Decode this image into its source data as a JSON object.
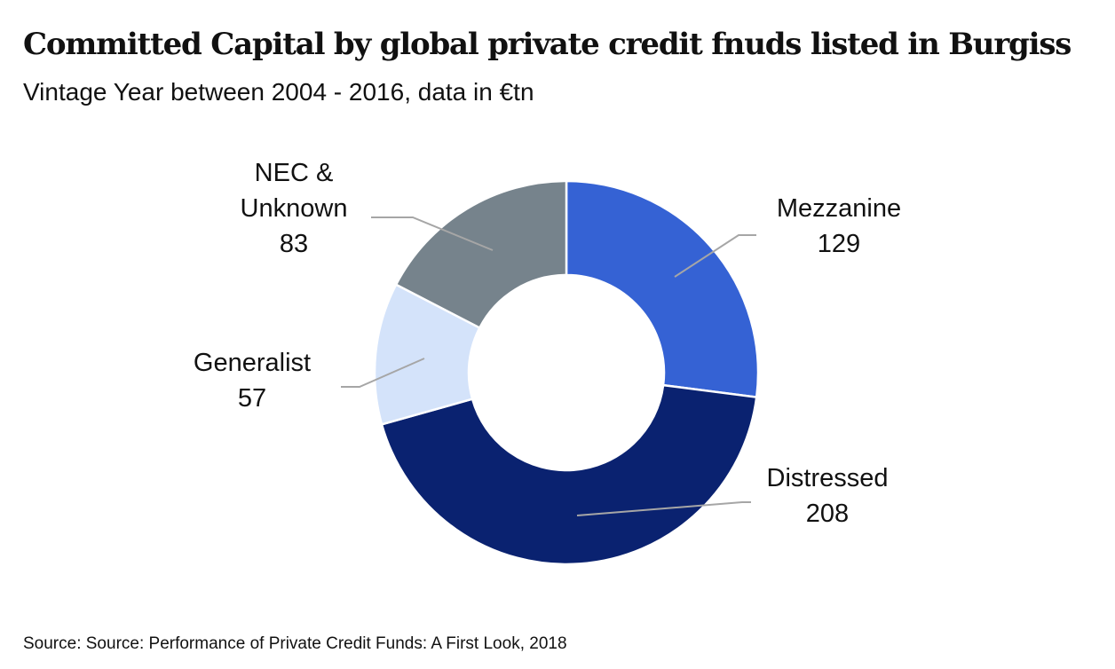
{
  "header": {
    "title": "Committed Capital by global private credit fnuds listed in Burgiss",
    "subtitle": "Vintage Year between 2004 - 2016, data in €tn"
  },
  "footer": {
    "source": "Source: Source: Performance of Private Credit Funds: A First Look, 2018"
  },
  "chart_data": {
    "type": "pie",
    "variant": "donut",
    "title": "Committed Capital by global private credit fnuds listed in Burgiss",
    "subtitle": "Vintage Year between 2004 - 2016, data in €tn",
    "start": "12 o'clock, clockwise",
    "slices": [
      {
        "label": "Mezzanine",
        "value": 129,
        "color": "#3562D4"
      },
      {
        "label": "Distressed",
        "value": 208,
        "color": "#0A2270"
      },
      {
        "label": "Generalist",
        "value": 57,
        "color": "#D4E3FA"
      },
      {
        "label": [
          "NEC &",
          "Unknown"
        ],
        "value": 83,
        "color": "#76838C"
      }
    ],
    "legend": "none",
    "data_labels": "outside with leader lines"
  }
}
